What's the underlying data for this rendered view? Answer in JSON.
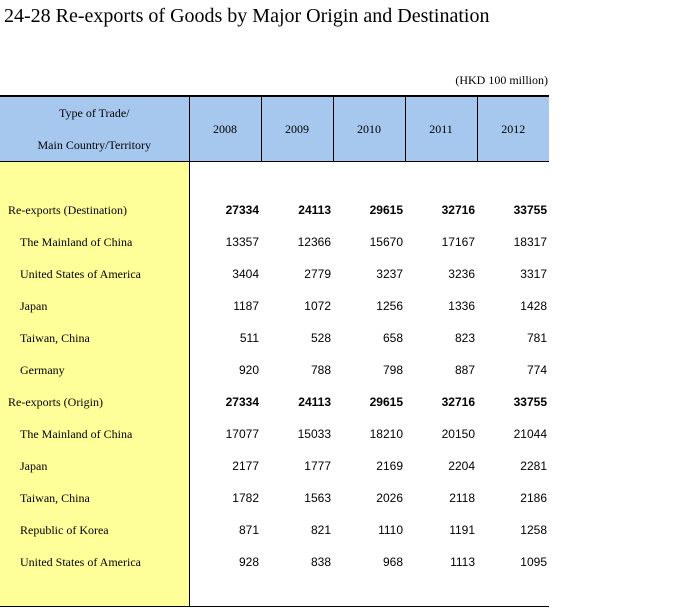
{
  "title": "24-28 Re-exports of Goods by Major Origin and Destination",
  "unit": "(HKD 100 million)",
  "header": {
    "label_line1": "Type of Trade/",
    "label_line2": "Main Country/Territory",
    "years": [
      "2008",
      "2009",
      "2010",
      "2011",
      "2012"
    ]
  },
  "rows": [
    {
      "label": "Re-exports (Destination)",
      "values": [
        "27334",
        "24113",
        "29615",
        "32716",
        "33755"
      ]
    },
    {
      "label": "The Mainland of China",
      "values": [
        "13357",
        "12366",
        "15670",
        "17167",
        "18317"
      ]
    },
    {
      "label": "United States of America",
      "values": [
        "3404",
        "2779",
        "3237",
        "3236",
        "3317"
      ]
    },
    {
      "label": "Japan",
      "values": [
        "1187",
        "1072",
        "1256",
        "1336",
        "1428"
      ]
    },
    {
      "label": "Taiwan, China",
      "values": [
        "511",
        "528",
        "658",
        "823",
        "781"
      ]
    },
    {
      "label": "Germany",
      "values": [
        "920",
        "788",
        "798",
        "887",
        "774"
      ]
    },
    {
      "label": "Re-exports (Origin)",
      "values": [
        "27334",
        "24113",
        "29615",
        "32716",
        "33755"
      ]
    },
    {
      "label": "The Mainland of China",
      "values": [
        "17077",
        "15033",
        "18210",
        "20150",
        "21044"
      ]
    },
    {
      "label": "Japan",
      "values": [
        "2177",
        "1777",
        "2169",
        "2204",
        "2281"
      ]
    },
    {
      "label": "Taiwan, China",
      "values": [
        "1782",
        "1563",
        "2026",
        "2118",
        "2186"
      ]
    },
    {
      "label": "Republic of Korea",
      "values": [
        "871",
        "821",
        "1110",
        "1191",
        "1258"
      ]
    },
    {
      "label": "United States of America",
      "values": [
        "928",
        "838",
        "968",
        "1113",
        "1095"
      ]
    }
  ],
  "colors": {
    "header_background": "#a6c8ee",
    "label_column_background": "#ffff99"
  }
}
